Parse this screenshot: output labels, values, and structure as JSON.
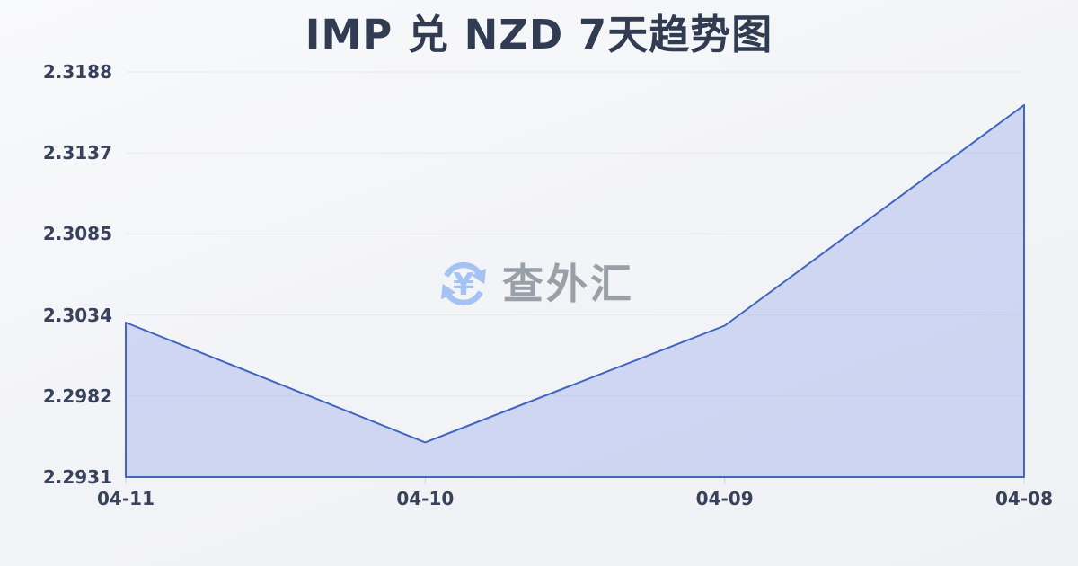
{
  "page": {
    "title": "IMP 兑 NZD 7天趋势图"
  },
  "watermark": {
    "icon": "currency-exchange-icon",
    "text": "查外汇",
    "icon_symbol": "¥",
    "icon_color": "#a4c2f4",
    "text_color": "#9aa0a8"
  },
  "chart_data": {
    "type": "area",
    "title": "IMP 兑 NZD 7天趋势图",
    "series_name": "IMP/NZD",
    "categories": [
      "04-11",
      "04-10",
      "04-09",
      "04-08"
    ],
    "values": [
      2.3029,
      2.2953,
      2.3027,
      2.3167
    ],
    "xlabel": "",
    "ylabel": "",
    "ylim": [
      2.2931,
      2.3188
    ],
    "y_tick_labels": [
      "2.2931",
      "2.2982",
      "2.3034",
      "2.3085",
      "2.3137",
      "2.3188"
    ],
    "grid": true,
    "legend": "none",
    "colors": {
      "line": "#4166bf",
      "fill": "rgba(92,122,228,0.24)",
      "gridline": "#e6e8ed",
      "axis_tick": "#cfd3da",
      "label": "#39425a",
      "title": "#313c52"
    }
  }
}
